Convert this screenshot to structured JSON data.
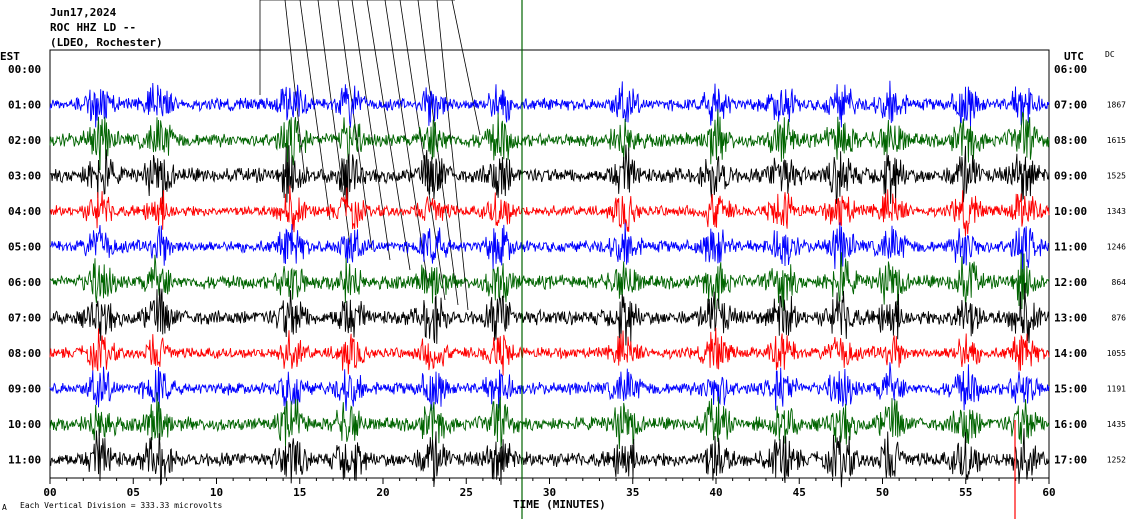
{
  "header": {
    "line1": "Jun17,2024",
    "line2": "ROC HHZ LD --",
    "line3": "(LDEO, Rochester)"
  },
  "labels": {
    "left_zone": "EST",
    "right_zone": "UTC",
    "dc": "DC",
    "footer_prefix": "A",
    "footer_scale": "Each Vertical Division =  333.33 microvolts"
  },
  "chart_data": {
    "type": "line",
    "title": "ROC HHZ LD --",
    "xlabel": "TIME (MINUTES)",
    "xlim": [
      0,
      60
    ],
    "x_ticks": [
      "00",
      "05",
      "10",
      "15",
      "20",
      "25",
      "30",
      "35",
      "40",
      "45",
      "50",
      "55",
      "60"
    ],
    "trace_colors": [
      "#ff0000",
      "#0000ff",
      "#006400",
      "#000000"
    ],
    "rows": [
      {
        "est": "00:00",
        "utc": "06:00",
        "dc": ""
      },
      {
        "est": "01:00",
        "utc": "07:00",
        "dc": "1867"
      },
      {
        "est": "02:00",
        "utc": "08:00",
        "dc": "1615"
      },
      {
        "est": "03:00",
        "utc": "09:00",
        "dc": "1525"
      },
      {
        "est": "04:00",
        "utc": "10:00",
        "dc": "1343"
      },
      {
        "est": "05:00",
        "utc": "11:00",
        "dc": "1246"
      },
      {
        "est": "06:00",
        "utc": "12:00",
        "dc": "864"
      },
      {
        "est": "07:00",
        "utc": "13:00",
        "dc": "876"
      },
      {
        "est": "08:00",
        "utc": "14:00",
        "dc": "1055"
      },
      {
        "est": "09:00",
        "utc": "15:00",
        "dc": "1191"
      },
      {
        "est": "10:00",
        "utc": "16:00",
        "dc": "1435"
      },
      {
        "est": "11:00",
        "utc": "17:00",
        "dc": "1252"
      }
    ]
  }
}
